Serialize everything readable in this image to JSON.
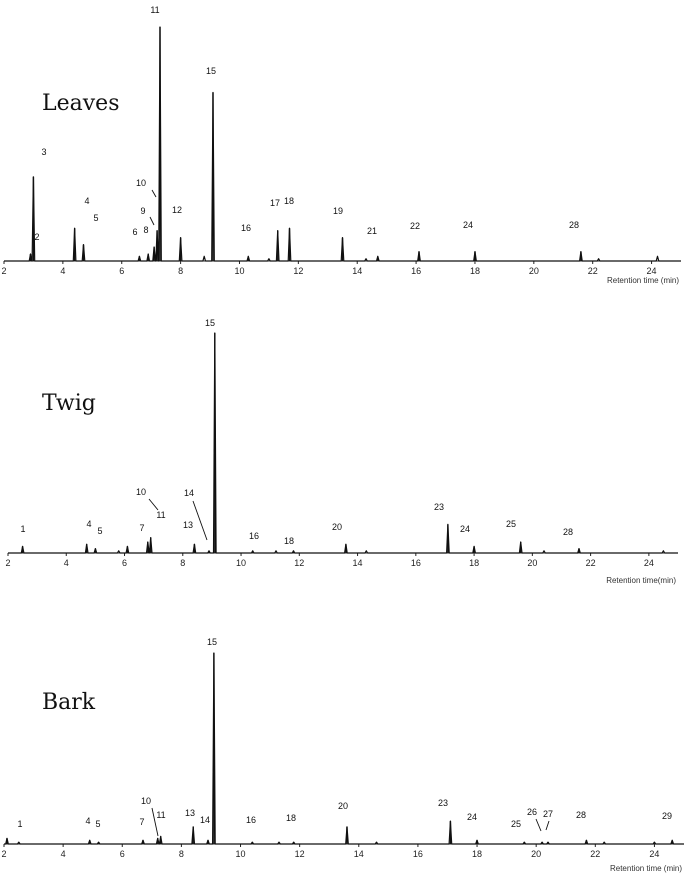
{
  "chart_data": [
    {
      "type": "line",
      "title": "Leaves",
      "xlabel": "Retention time (min)",
      "xlim": [
        2,
        25
      ],
      "ylim": [
        0,
        1
      ],
      "x_ticks": [
        "2",
        "4",
        "6",
        "8",
        "10",
        "12",
        "14",
        "16",
        "18",
        "20",
        "22",
        "24"
      ],
      "peaks": [
        {
          "label": "2",
          "x": 2.9,
          "y": 0.03
        },
        {
          "label": "3",
          "x": 3.0,
          "y": 0.36
        },
        {
          "label": "4",
          "x": 4.4,
          "y": 0.14
        },
        {
          "label": "5",
          "x": 4.7,
          "y": 0.07
        },
        {
          "label": "6",
          "x": 6.6,
          "y": 0.02
        },
        {
          "label": "8",
          "x": 6.9,
          "y": 0.03
        },
        {
          "label": "9",
          "x": 7.1,
          "y": 0.06
        },
        {
          "label": "10",
          "x": 7.2,
          "y": 0.13
        },
        {
          "label": "11",
          "x": 7.3,
          "y": 1.0
        },
        {
          "label": "12",
          "x": 8.0,
          "y": 0.1
        },
        {
          "label": "15",
          "x": 9.1,
          "y": 0.72
        },
        {
          "label": "16",
          "x": 10.3,
          "y": 0.02
        },
        {
          "label": "17",
          "x": 11.3,
          "y": 0.13
        },
        {
          "label": "18",
          "x": 11.7,
          "y": 0.14
        },
        {
          "label": "19",
          "x": 13.5,
          "y": 0.1
        },
        {
          "label": "21",
          "x": 14.7,
          "y": 0.02
        },
        {
          "label": "22",
          "x": 16.1,
          "y": 0.04
        },
        {
          "label": "24",
          "x": 18.0,
          "y": 0.04
        },
        {
          "label": "28",
          "x": 21.6,
          "y": 0.04
        }
      ],
      "minor_peaks": [
        {
          "x": 8.8,
          "y": 0.02
        },
        {
          "x": 11.0,
          "y": 0.01
        },
        {
          "x": 14.3,
          "y": 0.01
        },
        {
          "x": 22.2,
          "y": 0.01
        },
        {
          "x": 24.2,
          "y": 0.02
        }
      ]
    },
    {
      "type": "line",
      "title": "Twig",
      "xlabel": "Retention time(min)",
      "xlim": [
        2,
        25
      ],
      "ylim": [
        0,
        1
      ],
      "x_ticks": [
        "2",
        "4",
        "6",
        "8",
        "10",
        "12",
        "14",
        "16",
        "18",
        "20",
        "22",
        "24"
      ],
      "peaks": [
        {
          "label": "1",
          "x": 2.5,
          "y": 0.03
        },
        {
          "label": "4",
          "x": 4.7,
          "y": 0.04
        },
        {
          "label": "5",
          "x": 5.0,
          "y": 0.02
        },
        {
          "label": "7",
          "x": 6.1,
          "y": 0.03
        },
        {
          "label": "10",
          "x": 6.8,
          "y": 0.05
        },
        {
          "label": "11",
          "x": 6.9,
          "y": 0.07
        },
        {
          "label": "13",
          "x": 8.4,
          "y": 0.04
        },
        {
          "label": "14",
          "x": 8.9,
          "y": 0.01
        },
        {
          "label": "15",
          "x": 9.1,
          "y": 1.0
        },
        {
          "label": "16",
          "x": 10.4,
          "y": 0.01
        },
        {
          "label": "18",
          "x": 11.8,
          "y": 0.01
        },
        {
          "label": "20",
          "x": 13.6,
          "y": 0.04
        },
        {
          "label": "23",
          "x": 17.1,
          "y": 0.13
        },
        {
          "label": "24",
          "x": 18.0,
          "y": 0.03
        },
        {
          "label": "25",
          "x": 19.6,
          "y": 0.05
        },
        {
          "label": "28",
          "x": 21.6,
          "y": 0.02
        }
      ],
      "minor_peaks": [
        {
          "x": 5.8,
          "y": 0.01
        },
        {
          "x": 11.2,
          "y": 0.01
        },
        {
          "x": 14.3,
          "y": 0.01
        },
        {
          "x": 20.4,
          "y": 0.01
        },
        {
          "x": 24.5,
          "y": 0.01
        }
      ]
    },
    {
      "type": "line",
      "title": "Bark",
      "xlabel": "Retention time (min)",
      "xlim": [
        2,
        25
      ],
      "ylim": [
        0,
        1
      ],
      "x_ticks": [
        "2",
        "4",
        "6",
        "8",
        "10",
        "12",
        "14",
        "16",
        "18",
        "20",
        "22",
        "24"
      ],
      "peaks": [
        {
          "label": "1",
          "x": 2.1,
          "y": 0.03
        },
        {
          "label": "4",
          "x": 4.9,
          "y": 0.02
        },
        {
          "label": "5",
          "x": 5.2,
          "y": 0.01
        },
        {
          "label": "7",
          "x": 6.7,
          "y": 0.02
        },
        {
          "label": "10",
          "x": 7.2,
          "y": 0.03
        },
        {
          "label": "11",
          "x": 7.3,
          "y": 0.04
        },
        {
          "label": "13",
          "x": 8.4,
          "y": 0.09
        },
        {
          "label": "14",
          "x": 8.9,
          "y": 0.02
        },
        {
          "label": "15",
          "x": 9.1,
          "y": 1.0
        },
        {
          "label": "16",
          "x": 10.4,
          "y": 0.01
        },
        {
          "label": "18",
          "x": 11.8,
          "y": 0.01
        },
        {
          "label": "20",
          "x": 13.6,
          "y": 0.09
        },
        {
          "label": "23",
          "x": 17.1,
          "y": 0.12
        },
        {
          "label": "24",
          "x": 18.0,
          "y": 0.02
        },
        {
          "label": "25",
          "x": 19.6,
          "y": 0.01
        },
        {
          "label": "26",
          "x": 20.2,
          "y": 0.01
        },
        {
          "label": "27",
          "x": 20.4,
          "y": 0.01
        },
        {
          "label": "28",
          "x": 21.7,
          "y": 0.02
        },
        {
          "label": "29",
          "x": 24.6,
          "y": 0.02
        }
      ],
      "minor_peaks": [
        {
          "x": 2.5,
          "y": 0.01
        },
        {
          "x": 11.3,
          "y": 0.01
        },
        {
          "x": 14.6,
          "y": 0.01
        },
        {
          "x": 22.3,
          "y": 0.01
        },
        {
          "x": 24.0,
          "y": 0.01
        }
      ]
    }
  ]
}
